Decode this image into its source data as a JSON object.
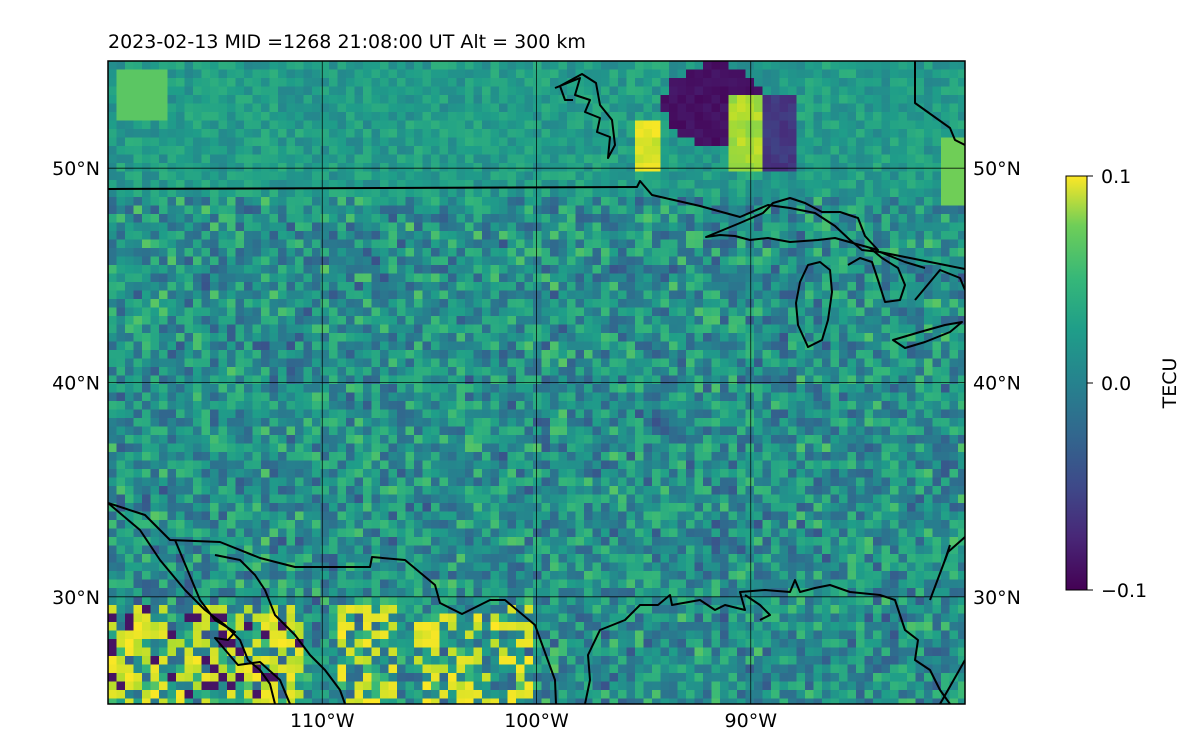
{
  "title": "2023-02-13  MID =1268    21:08:00  UT  Alt = 300 km",
  "map": {
    "lat_range": [
      25,
      55
    ],
    "lon_range": [
      -120,
      -80
    ],
    "lat_ticks": [
      {
        "value": 50,
        "label": "50°N"
      },
      {
        "value": 40,
        "label": "40°N"
      },
      {
        "value": 30,
        "label": "30°N"
      }
    ],
    "lon_ticks": [
      {
        "value": -110,
        "label": "110°W"
      },
      {
        "value": -100,
        "label": "100°W"
      },
      {
        "value": -90,
        "label": "90°W"
      }
    ],
    "field": "Total electron content perturbation, mostly near 0 with strong negative patch near 52°N 92°W and strong positive patches near 28°N 118–102°W"
  },
  "colorbar": {
    "label": "TECU",
    "colormap": "viridis",
    "range": [
      -0.1,
      0.1
    ],
    "ticks": [
      {
        "value": 0.1,
        "label": "0.1"
      },
      {
        "value": 0.0,
        "label": "0.0"
      },
      {
        "value": -0.1,
        "label": "−0.1"
      }
    ]
  },
  "colors": {
    "viridis_low": "#440154",
    "viridis_mid": "#21918c",
    "viridis_high": "#fde725",
    "coastline": "#000000"
  }
}
